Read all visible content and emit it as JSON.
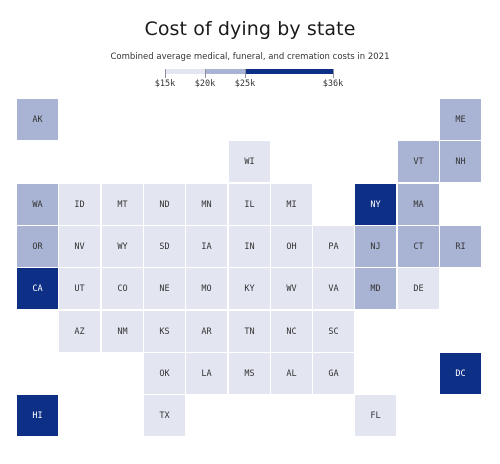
{
  "chart_data": {
    "type": "tile-map",
    "title": "Cost of dying by state",
    "subtitle": "Combined average medical, funeral, and cremation costs in 2021",
    "legend": {
      "ticks": [
        "$15k",
        "$20k",
        "$25k",
        "$36k"
      ],
      "values": [
        15,
        20,
        25,
        36
      ],
      "colors": [
        "#e3e6f1",
        "#a9b4d4",
        "#0e2f86"
      ]
    },
    "tiers": [
      "$15k–$20k",
      "$20k–$25k",
      "$25k–$36k"
    ],
    "states": [
      {
        "abbr": "AK",
        "row": 0,
        "col": 0,
        "tier": 1
      },
      {
        "abbr": "ME",
        "row": 0,
        "col": 10,
        "tier": 1
      },
      {
        "abbr": "WI",
        "row": 1,
        "col": 5,
        "tier": 0
      },
      {
        "abbr": "VT",
        "row": 1,
        "col": 9,
        "tier": 1
      },
      {
        "abbr": "NH",
        "row": 1,
        "col": 10,
        "tier": 1
      },
      {
        "abbr": "WA",
        "row": 2,
        "col": 0,
        "tier": 1
      },
      {
        "abbr": "ID",
        "row": 2,
        "col": 1,
        "tier": 0
      },
      {
        "abbr": "MT",
        "row": 2,
        "col": 2,
        "tier": 0
      },
      {
        "abbr": "ND",
        "row": 2,
        "col": 3,
        "tier": 0
      },
      {
        "abbr": "MN",
        "row": 2,
        "col": 4,
        "tier": 0
      },
      {
        "abbr": "IL",
        "row": 2,
        "col": 5,
        "tier": 0
      },
      {
        "abbr": "MI",
        "row": 2,
        "col": 6,
        "tier": 0
      },
      {
        "abbr": "NY",
        "row": 2,
        "col": 8,
        "tier": 2
      },
      {
        "abbr": "MA",
        "row": 2,
        "col": 9,
        "tier": 1
      },
      {
        "abbr": "OR",
        "row": 3,
        "col": 0,
        "tier": 1
      },
      {
        "abbr": "NV",
        "row": 3,
        "col": 1,
        "tier": 0
      },
      {
        "abbr": "WY",
        "row": 3,
        "col": 2,
        "tier": 0
      },
      {
        "abbr": "SD",
        "row": 3,
        "col": 3,
        "tier": 0
      },
      {
        "abbr": "IA",
        "row": 3,
        "col": 4,
        "tier": 0
      },
      {
        "abbr": "IN",
        "row": 3,
        "col": 5,
        "tier": 0
      },
      {
        "abbr": "OH",
        "row": 3,
        "col": 6,
        "tier": 0
      },
      {
        "abbr": "PA",
        "row": 3,
        "col": 7,
        "tier": 0
      },
      {
        "abbr": "NJ",
        "row": 3,
        "col": 8,
        "tier": 1
      },
      {
        "abbr": "CT",
        "row": 3,
        "col": 9,
        "tier": 1
      },
      {
        "abbr": "RI",
        "row": 3,
        "col": 10,
        "tier": 1
      },
      {
        "abbr": "CA",
        "row": 4,
        "col": 0,
        "tier": 2
      },
      {
        "abbr": "UT",
        "row": 4,
        "col": 1,
        "tier": 0
      },
      {
        "abbr": "CO",
        "row": 4,
        "col": 2,
        "tier": 0
      },
      {
        "abbr": "NE",
        "row": 4,
        "col": 3,
        "tier": 0
      },
      {
        "abbr": "MO",
        "row": 4,
        "col": 4,
        "tier": 0
      },
      {
        "abbr": "KY",
        "row": 4,
        "col": 5,
        "tier": 0
      },
      {
        "abbr": "WV",
        "row": 4,
        "col": 6,
        "tier": 0
      },
      {
        "abbr": "VA",
        "row": 4,
        "col": 7,
        "tier": 0
      },
      {
        "abbr": "MD",
        "row": 4,
        "col": 8,
        "tier": 1
      },
      {
        "abbr": "DE",
        "row": 4,
        "col": 9,
        "tier": 0
      },
      {
        "abbr": "AZ",
        "row": 5,
        "col": 1,
        "tier": 0
      },
      {
        "abbr": "NM",
        "row": 5,
        "col": 2,
        "tier": 0
      },
      {
        "abbr": "KS",
        "row": 5,
        "col": 3,
        "tier": 0
      },
      {
        "abbr": "AR",
        "row": 5,
        "col": 4,
        "tier": 0
      },
      {
        "abbr": "TN",
        "row": 5,
        "col": 5,
        "tier": 0
      },
      {
        "abbr": "NC",
        "row": 5,
        "col": 6,
        "tier": 0
      },
      {
        "abbr": "SC",
        "row": 5,
        "col": 7,
        "tier": 0
      },
      {
        "abbr": "OK",
        "row": 6,
        "col": 3,
        "tier": 0
      },
      {
        "abbr": "LA",
        "row": 6,
        "col": 4,
        "tier": 0
      },
      {
        "abbr": "MS",
        "row": 6,
        "col": 5,
        "tier": 0
      },
      {
        "abbr": "AL",
        "row": 6,
        "col": 6,
        "tier": 0
      },
      {
        "abbr": "GA",
        "row": 6,
        "col": 7,
        "tier": 0
      },
      {
        "abbr": "DC",
        "row": 6,
        "col": 10,
        "tier": 2
      },
      {
        "abbr": "HI",
        "row": 7,
        "col": 0,
        "tier": 2
      },
      {
        "abbr": "TX",
        "row": 7,
        "col": 3,
        "tier": 0
      },
      {
        "abbr": "FL",
        "row": 7,
        "col": 8,
        "tier": 0
      }
    ]
  }
}
